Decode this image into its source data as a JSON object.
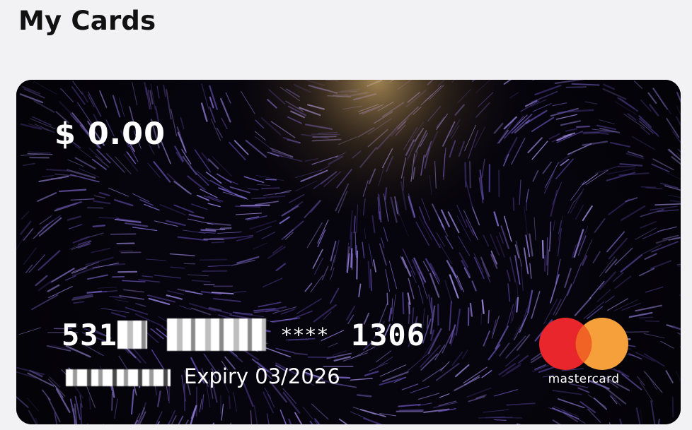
{
  "page": {
    "title": "My Cards"
  },
  "card": {
    "balance": "$ 0.00",
    "number_first": "531",
    "number_stars": "****",
    "number_last": "1306",
    "expiry": "Expiry 03/2026",
    "brand": "mastercard",
    "colors": {
      "mastercard_red": "#e8262b",
      "mastercard_orange": "#f6a03b",
      "mastercard_overlap": "#f16225",
      "card_background": "#06040c",
      "streak_purple": "#6b55b8",
      "glow_gold": "#c8a464"
    }
  }
}
